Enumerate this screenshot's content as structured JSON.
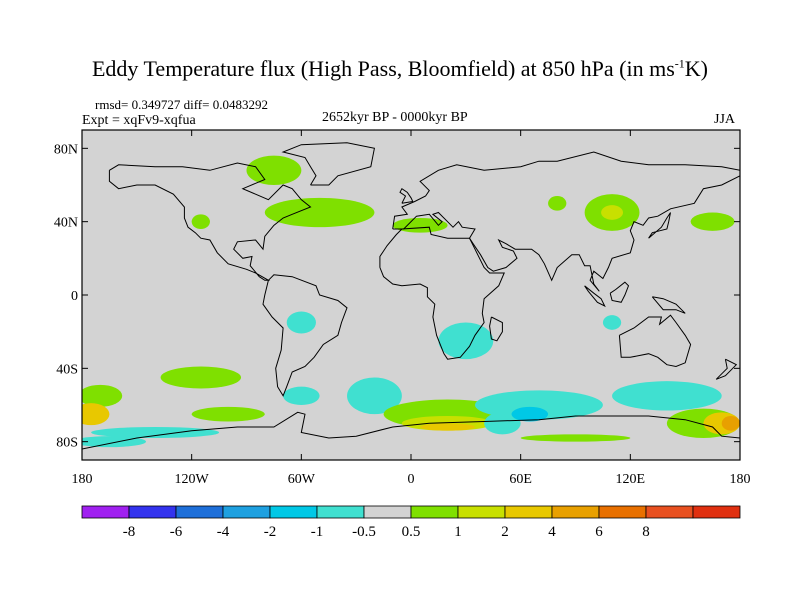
{
  "title": {
    "main": "Eddy Temperature flux (High Pass, Bloomfield) at 850 hPa (in ms",
    "sup": "-1",
    "end": "K)"
  },
  "stats": "rmsd= 0.349727 diff= 0.0483292",
  "expt": "Expt = xqFv9-xqfua",
  "period": "2652kyr BP - 0000kyr BP",
  "season": "JJA",
  "map": {
    "lon_range": [
      -180,
      180
    ],
    "lat_range": [
      -90,
      90
    ],
    "background_color": "#d3d3d3",
    "x_ticks": [
      {
        "lon": -180,
        "label": "180"
      },
      {
        "lon": -120,
        "label": "120W"
      },
      {
        "lon": -60,
        "label": "60W"
      },
      {
        "lon": 0,
        "label": "0"
      },
      {
        "lon": 60,
        "label": "60E"
      },
      {
        "lon": 120,
        "label": "120E"
      },
      {
        "lon": 180,
        "label": "180"
      }
    ],
    "y_ticks": [
      {
        "lat": 80,
        "label": "80N"
      },
      {
        "lat": 40,
        "label": "40N"
      },
      {
        "lat": 0,
        "label": "0"
      },
      {
        "lat": -40,
        "label": "40S"
      },
      {
        "lat": -80,
        "label": "80S"
      }
    ],
    "anomalies": [
      {
        "lon": -170,
        "lat": -55,
        "rx": 12,
        "ry": 6,
        "level": "0.5-1"
      },
      {
        "lon": -115,
        "lat": -45,
        "rx": 22,
        "ry": 6,
        "level": "0.5-1"
      },
      {
        "lon": -100,
        "lat": -65,
        "rx": 20,
        "ry": 4,
        "level": "0.5-1"
      },
      {
        "lon": -175,
        "lat": -65,
        "rx": 10,
        "ry": 6,
        "level": "2-4"
      },
      {
        "lon": -140,
        "lat": -75,
        "rx": 35,
        "ry": 3,
        "level": "-1--0.5"
      },
      {
        "lon": -60,
        "lat": -55,
        "rx": 10,
        "ry": 5,
        "level": "-1--0.5"
      },
      {
        "lon": -20,
        "lat": -55,
        "rx": 15,
        "ry": 10,
        "level": "-1--0.5"
      },
      {
        "lon": 20,
        "lat": -65,
        "rx": 35,
        "ry": 8,
        "level": "0.5-1"
      },
      {
        "lon": 20,
        "lat": -70,
        "rx": 25,
        "ry": 4,
        "level": "1-2"
      },
      {
        "lon": 20,
        "lat": -72,
        "rx": 15,
        "ry": 2,
        "level": "2-4"
      },
      {
        "lon": 50,
        "lat": -70,
        "rx": 10,
        "ry": 6,
        "level": "-1--0.5"
      },
      {
        "lon": 70,
        "lat": -60,
        "rx": 35,
        "ry": 8,
        "level": "-1--0.5"
      },
      {
        "lon": 65,
        "lat": -65,
        "rx": 10,
        "ry": 4,
        "level": "-2--1"
      },
      {
        "lon": 140,
        "lat": -55,
        "rx": 30,
        "ry": 8,
        "level": "-1--0.5"
      },
      {
        "lon": 160,
        "lat": -70,
        "rx": 20,
        "ry": 8,
        "level": "0.5-1"
      },
      {
        "lon": 170,
        "lat": -70,
        "rx": 10,
        "ry": 6,
        "level": "2-4"
      },
      {
        "lon": 175,
        "lat": -70,
        "rx": 5,
        "ry": 4,
        "level": "4-6"
      },
      {
        "lon": -165,
        "lat": -80,
        "rx": 20,
        "ry": 3,
        "level": "-1--0.5"
      },
      {
        "lon": 90,
        "lat": -78,
        "rx": 30,
        "ry": 2,
        "level": "0.5-1"
      },
      {
        "lon": -50,
        "lat": 45,
        "rx": 30,
        "ry": 8,
        "level": "0.5-1"
      },
      {
        "lon": -75,
        "lat": 68,
        "rx": 15,
        "ry": 8,
        "level": "0.5-1"
      },
      {
        "lon": 5,
        "lat": 38,
        "rx": 15,
        "ry": 4,
        "level": "0.5-1"
      },
      {
        "lon": 110,
        "lat": 45,
        "rx": 15,
        "ry": 10,
        "level": "0.5-1"
      },
      {
        "lon": 110,
        "lat": 45,
        "rx": 6,
        "ry": 4,
        "level": "1-2"
      },
      {
        "lon": 80,
        "lat": 50,
        "rx": 5,
        "ry": 4,
        "level": "0.5-1"
      },
      {
        "lon": -115,
        "lat": 40,
        "rx": 5,
        "ry": 4,
        "level": "0.5-1"
      },
      {
        "lon": 165,
        "lat": 40,
        "rx": 12,
        "ry": 5,
        "level": "0.5-1"
      },
      {
        "lon": -60,
        "lat": -15,
        "rx": 8,
        "ry": 6,
        "level": "-1--0.5"
      },
      {
        "lon": 30,
        "lat": -25,
        "rx": 15,
        "ry": 10,
        "level": "-1--0.5"
      },
      {
        "lon": 110,
        "lat": -15,
        "rx": 5,
        "ry": 4,
        "level": "-1--0.5"
      }
    ]
  },
  "colorbar": {
    "colors": [
      "#a020f0",
      "#3333ee",
      "#1e6fd9",
      "#1ea0e0",
      "#00c8e6",
      "#40e0d0",
      "#d3d3d3",
      "#7fe000",
      "#c8e000",
      "#e8c800",
      "#e8a000",
      "#e87000",
      "#e85020",
      "#e03010"
    ],
    "labels": [
      "-8",
      "-6",
      "-4",
      "-2",
      "-1",
      "-0.5",
      "0.5",
      "1",
      "2",
      "4",
      "6",
      "8"
    ]
  },
  "level_colors": {
    "-2--1": "#00c8e6",
    "-1--0.5": "#40e0d0",
    "0.5-1": "#7fe000",
    "1-2": "#c8e000",
    "2-4": "#e8c800",
    "4-6": "#e8a000"
  }
}
